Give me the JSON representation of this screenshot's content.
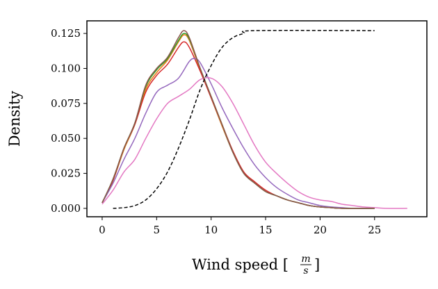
{
  "chart_data": {
    "type": "line",
    "xlabel": "Wind speed",
    "xlabel_unit_numerator": "m",
    "xlabel_unit_denominator": "s",
    "ylabel": "Density",
    "xlim": [
      -1.4,
      29.8
    ],
    "ylim": [
      -0.006,
      0.134
    ],
    "xticks": [
      "0",
      "5",
      "10",
      "15",
      "20",
      "25"
    ],
    "xtick_values": [
      0,
      5,
      10,
      15,
      20,
      25
    ],
    "yticks": [
      "0.000",
      "0.025",
      "0.050",
      "0.075",
      "0.100",
      "0.125"
    ],
    "ytick_values": [
      0,
      0.025,
      0.05,
      0.075,
      0.1,
      0.125
    ],
    "grid": false,
    "series": [
      {
        "color": "#1f77b4",
        "style": "solid",
        "x": [
          0,
          1,
          2,
          3,
          4,
          5,
          6,
          7,
          7.5,
          8,
          9,
          10,
          11,
          12,
          13,
          14,
          15,
          16,
          17,
          18,
          19,
          20,
          21,
          22,
          25
        ],
        "y": [
          0.004,
          0.02,
          0.042,
          0.06,
          0.085,
          0.097,
          0.106,
          0.119,
          0.124,
          0.12,
          0.099,
          0.079,
          0.059,
          0.04,
          0.025,
          0.018,
          0.012,
          0.009,
          0.006,
          0.004,
          0.002,
          0.001,
          0.0005,
          0,
          0
        ]
      },
      {
        "color": "#ff7f0e",
        "style": "solid",
        "x": [
          0,
          1,
          2,
          3,
          4,
          5,
          6,
          7,
          7.5,
          8,
          9,
          10,
          11,
          12,
          13,
          14,
          15,
          16,
          17,
          18,
          19,
          20,
          21,
          22,
          25
        ],
        "y": [
          0.004,
          0.02,
          0.042,
          0.06,
          0.085,
          0.097,
          0.106,
          0.119,
          0.124,
          0.12,
          0.099,
          0.079,
          0.059,
          0.04,
          0.025,
          0.018,
          0.012,
          0.009,
          0.006,
          0.004,
          0.002,
          0.001,
          0.0005,
          0,
          0
        ]
      },
      {
        "color": "#2ca02c",
        "style": "solid",
        "x": [
          0,
          1,
          2,
          3,
          4,
          5,
          6,
          7,
          7.5,
          8,
          9,
          10,
          11,
          12,
          13,
          14,
          15,
          16,
          17,
          18,
          19,
          20,
          21,
          22,
          25
        ],
        "y": [
          0.004,
          0.021,
          0.043,
          0.061,
          0.087,
          0.099,
          0.107,
          0.12,
          0.125,
          0.121,
          0.1,
          0.08,
          0.06,
          0.04,
          0.025,
          0.018,
          0.012,
          0.009,
          0.006,
          0.004,
          0.002,
          0.001,
          0.0005,
          0,
          0
        ]
      },
      {
        "color": "#d62728",
        "style": "solid",
        "x": [
          0,
          1,
          2,
          3,
          4,
          5,
          6,
          7,
          7.5,
          8,
          9,
          10,
          11,
          12,
          13,
          14,
          15,
          16,
          17,
          18,
          19,
          20,
          21,
          22,
          25
        ],
        "y": [
          0.004,
          0.02,
          0.043,
          0.06,
          0.083,
          0.095,
          0.103,
          0.115,
          0.119,
          0.115,
          0.098,
          0.079,
          0.06,
          0.041,
          0.026,
          0.019,
          0.013,
          0.009,
          0.006,
          0.004,
          0.002,
          0.001,
          0.0005,
          0,
          0
        ]
      },
      {
        "color": "#9467bd",
        "style": "solid",
        "x": [
          0,
          1,
          2,
          3,
          4,
          5,
          6,
          7,
          8,
          8.5,
          9,
          10,
          11,
          12,
          13,
          14,
          15,
          16,
          17,
          18,
          19,
          20,
          21,
          22,
          23,
          25
        ],
        "y": [
          0.004,
          0.018,
          0.035,
          0.05,
          0.068,
          0.083,
          0.088,
          0.093,
          0.105,
          0.107,
          0.104,
          0.089,
          0.072,
          0.057,
          0.043,
          0.031,
          0.022,
          0.015,
          0.01,
          0.006,
          0.004,
          0.002,
          0.001,
          0.0005,
          0,
          0
        ]
      },
      {
        "color": "#8c564b",
        "style": "solid",
        "x": [
          0,
          1,
          2,
          3,
          4,
          5,
          6,
          7,
          7.5,
          8,
          9,
          10,
          11,
          12,
          13,
          14,
          15,
          16,
          17,
          18,
          19,
          20,
          21,
          22,
          25
        ],
        "y": [
          0.004,
          0.021,
          0.043,
          0.061,
          0.088,
          0.1,
          0.108,
          0.122,
          0.127,
          0.122,
          0.1,
          0.08,
          0.06,
          0.04,
          0.025,
          0.018,
          0.012,
          0.009,
          0.006,
          0.004,
          0.002,
          0.001,
          0.0005,
          0,
          0
        ]
      },
      {
        "color": "#e377c2",
        "style": "solid",
        "x": [
          0,
          1,
          2,
          3,
          4,
          5,
          6,
          7,
          8,
          9,
          10,
          11,
          12,
          13,
          14,
          15,
          16,
          17,
          18,
          19,
          20,
          21,
          22,
          23,
          24,
          25,
          26,
          28
        ],
        "y": [
          0.003,
          0.013,
          0.026,
          0.035,
          0.05,
          0.064,
          0.075,
          0.08,
          0.085,
          0.092,
          0.093,
          0.087,
          0.075,
          0.06,
          0.045,
          0.033,
          0.025,
          0.018,
          0.012,
          0.008,
          0.006,
          0.005,
          0.003,
          0.002,
          0.001,
          0.0005,
          0,
          0
        ]
      },
      {
        "color": "#000000",
        "style": "dashed",
        "x": [
          1,
          2,
          3,
          4,
          5,
          6,
          7,
          8,
          9,
          10,
          11,
          12,
          13,
          14,
          25
        ],
        "y": [
          0,
          0.0005,
          0.002,
          0.006,
          0.014,
          0.026,
          0.043,
          0.063,
          0.085,
          0.102,
          0.115,
          0.122,
          0.125,
          0.127,
          0.127
        ]
      }
    ]
  }
}
